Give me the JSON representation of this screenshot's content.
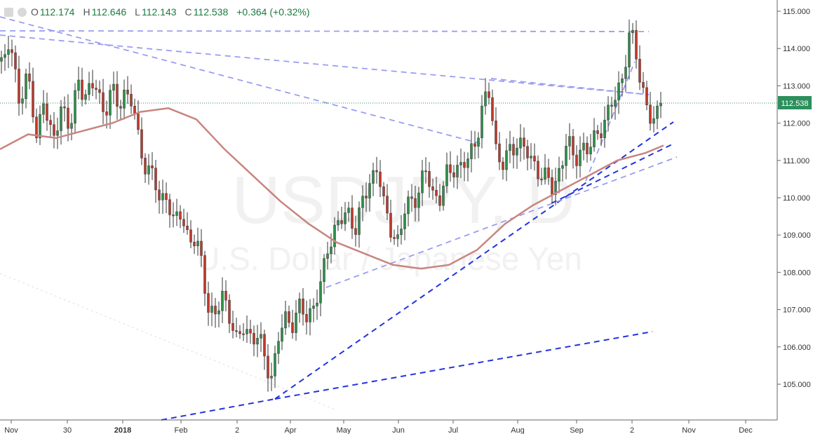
{
  "ohlc": {
    "open_label": "O",
    "open_value": "112.174",
    "high_label": "H",
    "high_value": "112.646",
    "low_label": "L",
    "low_value": "112.143",
    "close_label": "C",
    "close_value": "112.538",
    "change": "+0.364 (+0.32%)"
  },
  "watermark": {
    "symbol": "USDJPY, D",
    "description": "U.S. Dollar / Japanese Yen"
  },
  "price_tag": "112.538",
  "colors": {
    "up_candle": "#2f8f4a",
    "down_candle": "#c0392b",
    "moving_average": "#c8857f",
    "trendline_dark": "#2233dd",
    "trendline_light": "#9a9df2",
    "price_tag_bg": "#2c8f5c"
  },
  "chart_data": {
    "type": "candlestick",
    "title": "",
    "xlabel": "",
    "ylabel": "",
    "ylim": [
      104.06,
      115.19
    ],
    "grid": false,
    "y_ticks": [
      "105.000",
      "106.000",
      "107.000",
      "108.000",
      "109.000",
      "110.000",
      "111.000",
      "112.000",
      "113.000",
      "114.000",
      "115.000"
    ],
    "x_ticks": [
      "Nov",
      "30",
      "2018",
      "Feb",
      "2",
      "Apr",
      "May",
      "Jun",
      "Jul",
      "Aug",
      "Sep",
      "2",
      "Nov",
      "Dec"
    ],
    "last_price": 112.538,
    "price_path": [
      [
        0,
        113.6
      ],
      [
        12,
        114.1
      ],
      [
        28,
        112.7
      ],
      [
        40,
        113.3
      ],
      [
        52,
        111.5
      ],
      [
        62,
        112.8
      ],
      [
        75,
        111.3
      ],
      [
        88,
        112.6
      ],
      [
        100,
        111.8
      ],
      [
        112,
        113.1
      ],
      [
        124,
        112.8
      ],
      [
        136,
        113.0
      ],
      [
        148,
        112.3
      ],
      [
        158,
        112.9
      ],
      [
        168,
        112.4
      ],
      [
        178,
        112.9
      ],
      [
        188,
        112.6
      ],
      [
        198,
        111.4
      ],
      [
        208,
        110.9
      ],
      [
        218,
        110.6
      ],
      [
        228,
        109.8
      ],
      [
        238,
        110.2
      ],
      [
        248,
        109.2
      ],
      [
        258,
        109.6
      ],
      [
        268,
        109.0
      ],
      [
        278,
        108.8
      ],
      [
        288,
        108.2
      ],
      [
        298,
        107.0
      ],
      [
        308,
        106.8
      ],
      [
        318,
        107.4
      ],
      [
        328,
        106.9
      ],
      [
        338,
        106.0
      ],
      [
        348,
        106.6
      ],
      [
        358,
        106.3
      ],
      [
        368,
        106.2
      ],
      [
        378,
        105.7
      ],
      [
        388,
        105.2
      ],
      [
        398,
        106.3
      ],
      [
        408,
        106.8
      ],
      [
        418,
        106.7
      ],
      [
        428,
        107.0
      ],
      [
        438,
        106.8
      ],
      [
        448,
        107.2
      ],
      [
        458,
        107.6
      ],
      [
        468,
        108.8
      ],
      [
        478,
        109.2
      ],
      [
        488,
        109.4
      ],
      [
        498,
        109.6
      ],
      [
        508,
        109.2
      ],
      [
        518,
        109.9
      ],
      [
        528,
        110.5
      ],
      [
        538,
        110.9
      ],
      [
        548,
        109.6
      ],
      [
        558,
        109.2
      ],
      [
        568,
        108.8
      ],
      [
        578,
        109.7
      ],
      [
        588,
        110.0
      ],
      [
        598,
        110.2
      ],
      [
        608,
        110.7
      ],
      [
        618,
        110.1
      ],
      [
        628,
        110.0
      ],
      [
        638,
        110.6
      ],
      [
        648,
        110.9
      ],
      [
        658,
        110.8
      ],
      [
        668,
        111.0
      ],
      [
        678,
        111.6
      ],
      [
        688,
        112.4
      ],
      [
        698,
        112.8
      ],
      [
        708,
        111.2
      ],
      [
        718,
        110.9
      ],
      [
        728,
        111.2
      ],
      [
        738,
        111.6
      ],
      [
        748,
        111.3
      ],
      [
        758,
        110.9
      ],
      [
        768,
        110.8
      ],
      [
        778,
        110.5
      ],
      [
        788,
        110.2
      ],
      [
        798,
        110.8
      ],
      [
        808,
        111.5
      ],
      [
        818,
        111.0
      ],
      [
        828,
        111.4
      ],
      [
        838,
        111.2
      ],
      [
        848,
        111.6
      ],
      [
        858,
        112.0
      ],
      [
        868,
        112.2
      ],
      [
        878,
        112.8
      ],
      [
        888,
        113.3
      ],
      [
        898,
        114.4
      ],
      [
        906,
        113.9
      ],
      [
        914,
        113.2
      ],
      [
        922,
        112.4
      ],
      [
        930,
        111.9
      ],
      [
        938,
        112.3
      ],
      [
        946,
        112.54
      ]
    ],
    "moving_average_path": [
      [
        0,
        111.3
      ],
      [
        40,
        111.7
      ],
      [
        80,
        111.6
      ],
      [
        120,
        111.8
      ],
      [
        160,
        112.0
      ],
      [
        200,
        112.3
      ],
      [
        240,
        112.4
      ],
      [
        280,
        112.1
      ],
      [
        320,
        111.3
      ],
      [
        360,
        110.6
      ],
      [
        400,
        109.9
      ],
      [
        440,
        109.3
      ],
      [
        480,
        108.8
      ],
      [
        520,
        108.5
      ],
      [
        560,
        108.2
      ],
      [
        600,
        108.1
      ],
      [
        640,
        108.2
      ],
      [
        680,
        108.6
      ],
      [
        720,
        109.3
      ],
      [
        760,
        109.8
      ],
      [
        800,
        110.2
      ],
      [
        840,
        110.6
      ],
      [
        880,
        111.0
      ],
      [
        920,
        111.2
      ],
      [
        946,
        111.4
      ]
    ]
  }
}
